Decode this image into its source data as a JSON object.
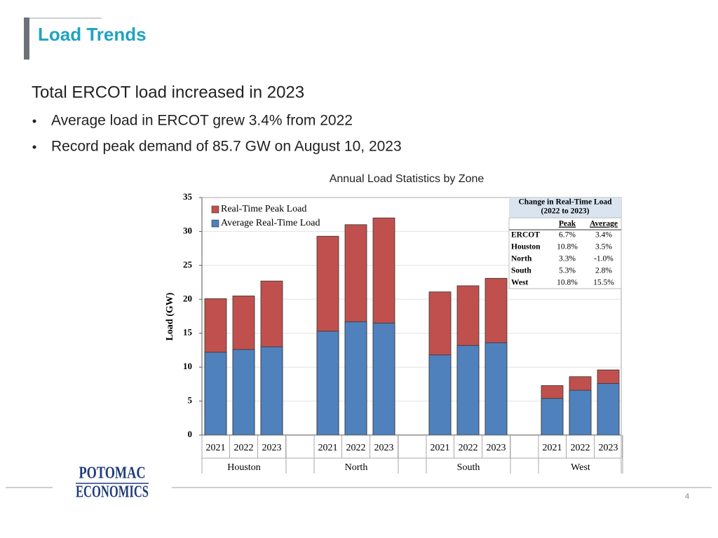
{
  "header": {
    "title": "Load Trends"
  },
  "body": {
    "heading": "Total ERCOT load increased in 2023",
    "bullets": [
      "Average load in ERCOT grew 3.4% from 2022",
      "Record peak demand of 85.7 GW on August 10, 2023"
    ]
  },
  "chart_data": {
    "type": "bar",
    "title": "Annual Load Statistics by Zone",
    "y_label": "Load (GW)",
    "categories": [
      "2021",
      "2022",
      "2023",
      "2021",
      "2022",
      "2023",
      "2021",
      "2022",
      "2023",
      "2021",
      "2022",
      "2023"
    ],
    "groups": [
      "Houston",
      "North",
      "South",
      "West"
    ],
    "series": [
      {
        "name": "Real-Time Peak Load",
        "color": "#c0504d",
        "values": [
          20.1,
          20.5,
          22.7,
          29.3,
          31.0,
          32.0,
          21.1,
          22.0,
          23.1,
          7.3,
          8.6,
          9.6
        ]
      },
      {
        "name": "Average Real-Time Load",
        "color": "#4f81bd",
        "values": [
          12.2,
          12.6,
          13.0,
          15.3,
          16.7,
          16.5,
          11.8,
          13.2,
          13.6,
          5.4,
          6.6,
          7.6
        ]
      }
    ],
    "ylim": [
      0,
      35
    ],
    "yticks": [
      0,
      5,
      10,
      15,
      20,
      25,
      30,
      35
    ],
    "grid": true,
    "inset_table": {
      "title": "Change in Real-Time Load",
      "subtitle": "(2022 to 2023)",
      "columns": [
        "Peak",
        "Average"
      ],
      "rows": [
        [
          "ERCOT",
          "6.7%",
          "3.4%"
        ],
        [
          "Houston",
          "10.8%",
          "3.5%"
        ],
        [
          "North",
          "3.3%",
          "-1.0%"
        ],
        [
          "South",
          "5.3%",
          "2.8%"
        ],
        [
          "West",
          "10.8%",
          "15.5%"
        ]
      ]
    }
  },
  "footer": {
    "logo": [
      "POTOMAC",
      "ECONOMICS"
    ],
    "page_number": "4"
  }
}
